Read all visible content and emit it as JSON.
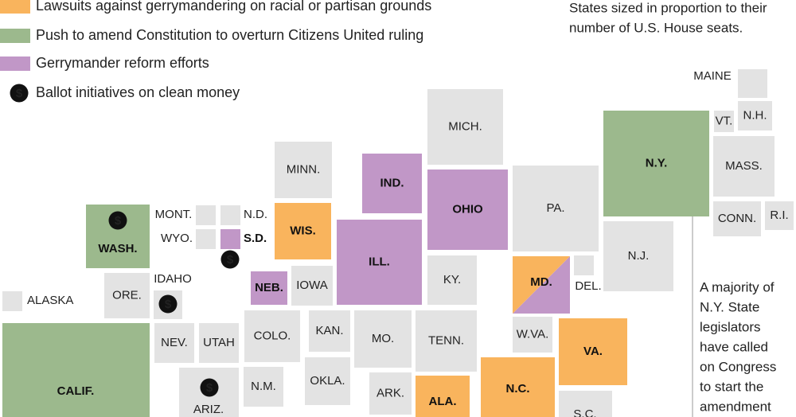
{
  "legend": [
    {
      "label": "Lawsuits against gerrymandering on racial or partisan grounds",
      "color": "#f9b45d"
    },
    {
      "label": "Push to amend Constitution to overturn Citizens United ruling",
      "color": "#9cb98d"
    },
    {
      "label": "Gerrymander reform efforts",
      "color": "#c197c7"
    },
    {
      "label": "Ballot initiatives on clean money",
      "icon": "$"
    }
  ],
  "note": [
    "States sized in proportion to their",
    "number of U.S. House seats."
  ],
  "annotation": [
    "A majority of",
    "N.Y. State",
    "legislators",
    "have called",
    "on Congress",
    "to start the",
    "amendment"
  ],
  "default_color": "#e3e3e3",
  "states": [
    {
      "label": "MAINE"
    },
    {
      "label": "VT."
    },
    {
      "label": "N.H."
    },
    {
      "label": "N.Y.",
      "colors": [
        "#9cb98d"
      ]
    },
    {
      "label": "MASS."
    },
    {
      "label": "CONN."
    },
    {
      "label": "R.I."
    },
    {
      "label": "N.J."
    },
    {
      "label": "MICH."
    },
    {
      "label": "MINN."
    },
    {
      "label": "IND.",
      "colors": [
        "#c197c7"
      ]
    },
    {
      "label": "OHIO",
      "colors": [
        "#c197c7"
      ]
    },
    {
      "label": "PA."
    },
    {
      "label": "MONT."
    },
    {
      "label": "N.D."
    },
    {
      "label": "WYO."
    },
    {
      "label": "S.D.",
      "colors": [
        "#c197c7"
      ],
      "money": true
    },
    {
      "label": "WIS.",
      "colors": [
        "#f9b45d"
      ]
    },
    {
      "label": "WASH.",
      "colors": [
        "#9cb98d"
      ],
      "money": true
    },
    {
      "label": "ILL.",
      "colors": [
        "#c197c7"
      ]
    },
    {
      "label": "KY."
    },
    {
      "label": "MD.",
      "colors": [
        "#f9b45d",
        "#c197c7"
      ]
    },
    {
      "label": "DEL."
    },
    {
      "label": "IDAHO",
      "money": true
    },
    {
      "label": "ORE."
    },
    {
      "label": "ALASKA"
    },
    {
      "label": "NEB.",
      "colors": [
        "#c197c7"
      ]
    },
    {
      "label": "IOWA"
    },
    {
      "label": "CALIF.",
      "colors": [
        "#9cb98d"
      ]
    },
    {
      "label": "NEV."
    },
    {
      "label": "UTAH"
    },
    {
      "label": "COLO."
    },
    {
      "label": "KAN."
    },
    {
      "label": "MO."
    },
    {
      "label": "TENN."
    },
    {
      "label": "W.VA."
    },
    {
      "label": "VA.",
      "colors": [
        "#f9b45d"
      ]
    },
    {
      "label": "N.C.",
      "colors": [
        "#f9b45d"
      ]
    },
    {
      "label": "OKLA."
    },
    {
      "label": "N.M."
    },
    {
      "label": "ARIZ.",
      "money": true
    },
    {
      "label": "ARK."
    },
    {
      "label": "ALA.",
      "colors": [
        "#f9b45d"
      ]
    },
    {
      "label": "S.C."
    }
  ]
}
